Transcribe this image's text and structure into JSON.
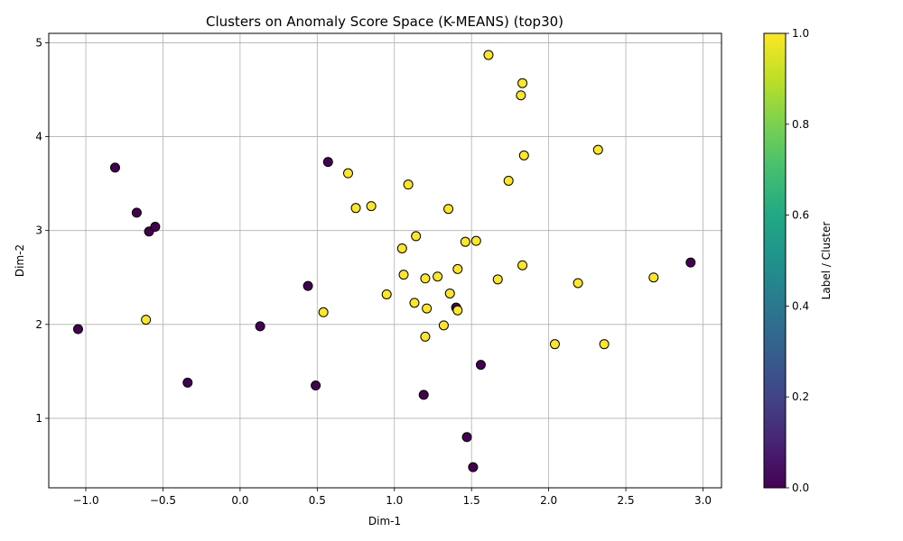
{
  "chart_data": {
    "type": "scatter",
    "title": "Clusters on Anomaly Score Space (K-MEANS) (top30)",
    "xlabel": "Dim-1",
    "ylabel": "Dim-2",
    "xlim": [
      -1.24,
      3.12
    ],
    "ylim": [
      0.26,
      5.1
    ],
    "xticks": [
      -1.0,
      -0.5,
      0.0,
      0.5,
      1.0,
      1.5,
      2.0,
      2.5,
      3.0
    ],
    "xtick_labels": [
      "−1.0",
      "−0.5",
      "0.0",
      "0.5",
      "1.0",
      "1.5",
      "2.0",
      "2.5",
      "3.0"
    ],
    "yticks": [
      1,
      2,
      3,
      4,
      5
    ],
    "ytick_labels": [
      "1",
      "2",
      "3",
      "4",
      "5"
    ],
    "grid": true,
    "colorbar": {
      "label": "Label / Cluster",
      "range": [
        0.0,
        1.0
      ],
      "ticks": [
        0.0,
        0.2,
        0.4,
        0.6,
        0.8,
        1.0
      ],
      "tick_labels": [
        "0.0",
        "0.2",
        "0.4",
        "0.6",
        "0.8",
        "1.0"
      ],
      "colormap": "viridis"
    },
    "points": [
      {
        "x": -1.05,
        "y": 1.95,
        "label": 0
      },
      {
        "x": -0.81,
        "y": 3.67,
        "label": 0
      },
      {
        "x": -0.67,
        "y": 3.19,
        "label": 0
      },
      {
        "x": -0.59,
        "y": 2.99,
        "label": 0
      },
      {
        "x": -0.55,
        "y": 3.04,
        "label": 0
      },
      {
        "x": -0.34,
        "y": 1.38,
        "label": 0
      },
      {
        "x": 0.13,
        "y": 1.98,
        "label": 0
      },
      {
        "x": 0.44,
        "y": 2.41,
        "label": 0
      },
      {
        "x": 0.49,
        "y": 1.35,
        "label": 0
      },
      {
        "x": 0.57,
        "y": 3.73,
        "label": 0
      },
      {
        "x": 1.19,
        "y": 1.25,
        "label": 0
      },
      {
        "x": 1.4,
        "y": 2.18,
        "label": 0
      },
      {
        "x": 1.47,
        "y": 0.8,
        "label": 0
      },
      {
        "x": 1.51,
        "y": 0.48,
        "label": 0
      },
      {
        "x": 1.56,
        "y": 1.57,
        "label": 0
      },
      {
        "x": 2.92,
        "y": 2.66,
        "label": 0
      },
      {
        "x": -0.61,
        "y": 2.05,
        "label": 1
      },
      {
        "x": 0.54,
        "y": 2.13,
        "label": 1
      },
      {
        "x": 0.7,
        "y": 3.61,
        "label": 1
      },
      {
        "x": 0.75,
        "y": 3.24,
        "label": 1
      },
      {
        "x": 0.85,
        "y": 3.26,
        "label": 1
      },
      {
        "x": 0.95,
        "y": 2.32,
        "label": 1
      },
      {
        "x": 1.05,
        "y": 2.81,
        "label": 1
      },
      {
        "x": 1.06,
        "y": 2.53,
        "label": 1
      },
      {
        "x": 1.09,
        "y": 3.49,
        "label": 1
      },
      {
        "x": 1.13,
        "y": 2.23,
        "label": 1
      },
      {
        "x": 1.14,
        "y": 2.94,
        "label": 1
      },
      {
        "x": 1.2,
        "y": 2.49,
        "label": 1
      },
      {
        "x": 1.2,
        "y": 1.87,
        "label": 1
      },
      {
        "x": 1.21,
        "y": 2.17,
        "label": 1
      },
      {
        "x": 1.28,
        "y": 2.51,
        "label": 1
      },
      {
        "x": 1.32,
        "y": 1.99,
        "label": 1
      },
      {
        "x": 1.35,
        "y": 3.23,
        "label": 1
      },
      {
        "x": 1.36,
        "y": 2.33,
        "label": 1
      },
      {
        "x": 1.41,
        "y": 2.59,
        "label": 1
      },
      {
        "x": 1.41,
        "y": 2.15,
        "label": 1
      },
      {
        "x": 1.46,
        "y": 2.88,
        "label": 1
      },
      {
        "x": 1.53,
        "y": 2.89,
        "label": 1
      },
      {
        "x": 1.61,
        "y": 4.87,
        "label": 1
      },
      {
        "x": 1.67,
        "y": 2.48,
        "label": 1
      },
      {
        "x": 1.74,
        "y": 3.53,
        "label": 1
      },
      {
        "x": 1.82,
        "y": 4.44,
        "label": 1
      },
      {
        "x": 1.83,
        "y": 4.57,
        "label": 1
      },
      {
        "x": 1.83,
        "y": 2.63,
        "label": 1
      },
      {
        "x": 1.84,
        "y": 3.8,
        "label": 1
      },
      {
        "x": 2.04,
        "y": 1.79,
        "label": 1
      },
      {
        "x": 2.19,
        "y": 2.44,
        "label": 1
      },
      {
        "x": 2.32,
        "y": 3.86,
        "label": 1
      },
      {
        "x": 2.36,
        "y": 1.79,
        "label": 1
      },
      {
        "x": 2.68,
        "y": 2.5,
        "label": 1
      }
    ]
  }
}
